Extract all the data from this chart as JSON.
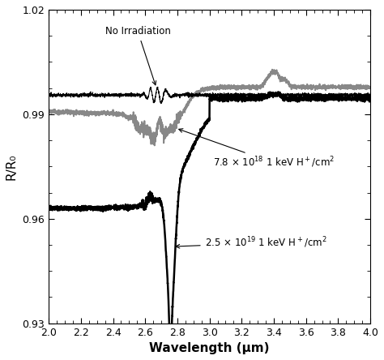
{
  "xlim": [
    2.0,
    4.0
  ],
  "ylim": [
    0.93,
    1.02
  ],
  "xlabel": "Wavelength (μm)",
  "ylabel": "R/R₀",
  "xticks": [
    2.0,
    2.2,
    2.4,
    2.6,
    2.8,
    3.0,
    3.2,
    3.4,
    3.6,
    3.8,
    4.0
  ],
  "yticks": [
    0.93,
    0.96,
    0.99,
    1.02
  ],
  "background_color": "#ffffff",
  "line_colors_no_irr": "#000000",
  "line_colors_gray": "#888888",
  "line_colors_black": "#000000",
  "lw_thin": 0.7,
  "lw_gray": 1.4,
  "lw_black": 1.8
}
